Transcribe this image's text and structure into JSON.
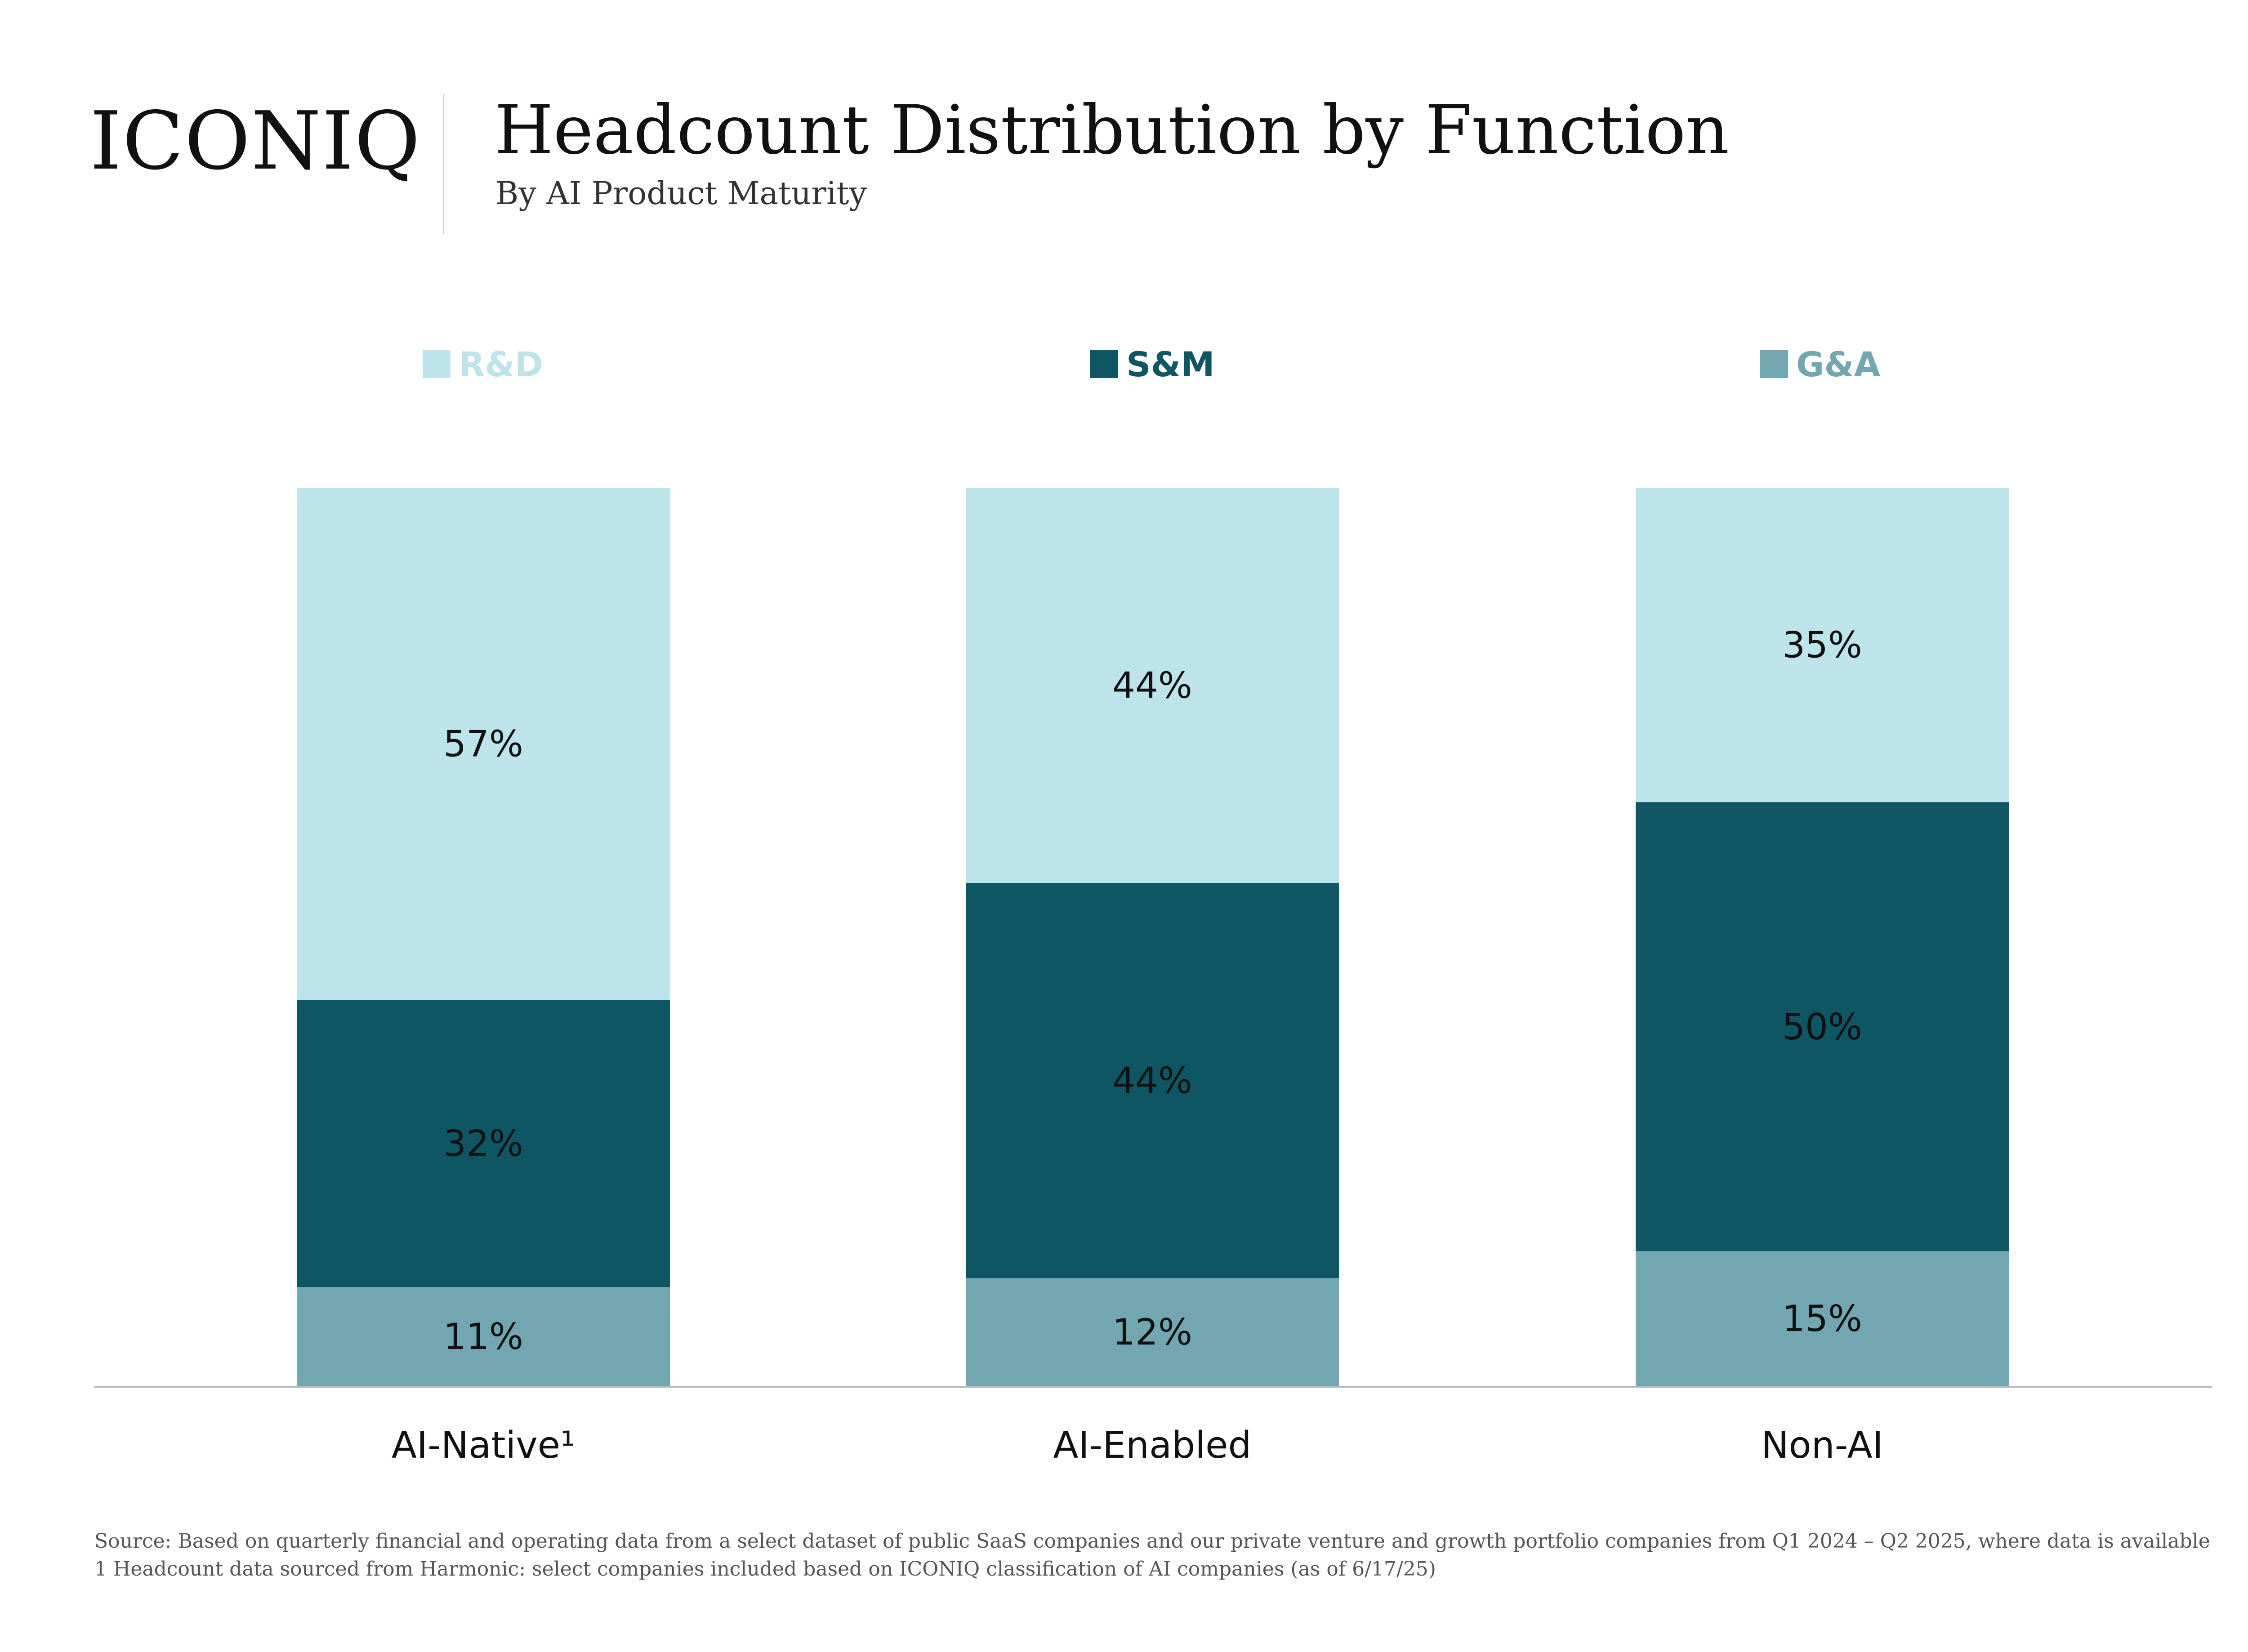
{
  "header": {
    "logo": "ICONIQ",
    "title": "Headcount Distribution by Function",
    "subtitle": "By AI Product Maturity"
  },
  "colors": {
    "rd": "#bde4ea",
    "sm": "#0f5664",
    "ga": "#72a7b2",
    "axis": "#bbbbbb"
  },
  "chart_data": {
    "type": "bar",
    "stacked": true,
    "categories": [
      "AI-Native¹",
      "AI-Enabled",
      "Non-AI"
    ],
    "series": [
      {
        "name": "G&A",
        "key": "ga",
        "values": [
          11,
          12,
          15
        ],
        "labels": [
          "11%",
          "12%",
          "15%"
        ]
      },
      {
        "name": "S&M",
        "key": "sm",
        "values": [
          32,
          44,
          50
        ],
        "labels": [
          "32%",
          "44%",
          "50%"
        ]
      },
      {
        "name": "R&D",
        "key": "rd",
        "values": [
          57,
          44,
          35
        ],
        "labels": [
          "57%",
          "44%",
          "35%"
        ]
      }
    ],
    "legend": [
      "R&D",
      "S&M",
      "G&A"
    ],
    "legend_position": "top",
    "ylim": [
      0,
      100
    ],
    "grid": false
  },
  "footnotes": {
    "source": "Source: Based on quarterly financial and operating data from a select dataset of public SaaS companies and our private venture and growth portfolio companies from Q1 2024 – Q2 2025, where data is available",
    "note1": "1 Headcount data sourced from Harmonic: select companies included based on ICONIQ classification of AI companies (as of 6/17/25)"
  }
}
